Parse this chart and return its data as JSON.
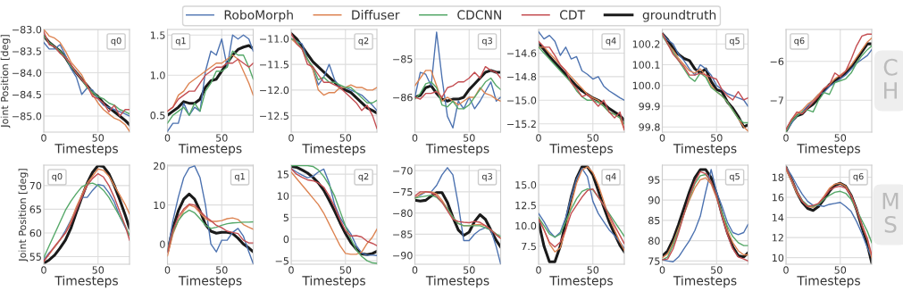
{
  "chart_data": [
    {
      "type": "line",
      "xlabel": "Timesteps",
      "ylabel": "Joint Position [deg]",
      "x": [
        0,
        5,
        10,
        15,
        20,
        25,
        30,
        35,
        40,
        45,
        50,
        55,
        60,
        65,
        70,
        75,
        79
      ],
      "xlim": [
        0,
        79
      ],
      "xticks": [
        0,
        50
      ],
      "ylim": [
        -85.37,
        -83.0
      ],
      "yticks": [
        {
          "value": -85,
          "label": "−85.0"
        },
        -84.5,
        {
          "value": -84,
          "label": "−84.0"
        },
        -83.5,
        {
          "value": -83,
          "label": "−83.0"
        }
      ],
      "grid": true,
      "legend": "top",
      "annotations": [
        "q0"
      ],
      "series": [
        {
          "name": "RoboMorph",
          "color": "#4c72b0",
          "values": [
            -83.3,
            -83.45,
            -83.45,
            -83.35,
            -83.6,
            -83.9,
            -84.1,
            -84.5,
            -84.35,
            -84.4,
            -84.6,
            -84.75,
            -84.8,
            -84.85,
            -84.9,
            -84.95,
            -85.0
          ]
        },
        {
          "name": "Diffuser",
          "color": "#dd8452",
          "values": [
            -83.0,
            -83.15,
            -83.2,
            -83.3,
            -83.5,
            -83.75,
            -83.9,
            -84.05,
            -84.3,
            -84.5,
            -84.7,
            -84.85,
            -84.95,
            -85.05,
            -85.1,
            -85.2,
            -85.35
          ]
        },
        {
          "name": "CDCNN",
          "color": "#55a868",
          "values": [
            -83.15,
            -83.3,
            -83.4,
            -83.5,
            -83.65,
            -83.85,
            -84.0,
            -84.15,
            -84.35,
            -84.45,
            -84.55,
            -84.6,
            -84.7,
            -84.75,
            -84.85,
            -84.9,
            -84.95
          ]
        },
        {
          "name": "CDT",
          "color": "#c44e52",
          "values": [
            -83.05,
            -83.35,
            -83.4,
            -83.55,
            -83.65,
            -83.8,
            -84.0,
            -84.15,
            -84.3,
            -84.55,
            -84.6,
            -84.7,
            -84.9,
            -84.75,
            -85.0,
            -84.85,
            -84.85
          ]
        },
        {
          "name": "groundtruth",
          "color": "#1a1a1a",
          "values": [
            -83.15,
            -83.3,
            -83.4,
            -83.5,
            -83.65,
            -83.85,
            -84.0,
            -84.15,
            -84.3,
            -84.45,
            -84.55,
            -84.7,
            -84.8,
            -84.9,
            -85.0,
            -85.1,
            -85.2
          ]
        }
      ]
    },
    {
      "type": "line",
      "xlabel": "Timesteps",
      "x": [
        0,
        5,
        10,
        15,
        20,
        25,
        30,
        35,
        40,
        45,
        50,
        55,
        60,
        65,
        70,
        75,
        79
      ],
      "xlim": [
        0,
        79
      ],
      "xticks": [
        0,
        50
      ],
      "ylim": [
        0.29,
        1.57
      ],
      "yticks": [
        0.5,
        {
          "value": 1,
          "label": "1.0"
        },
        1.5
      ],
      "grid": true,
      "annotations": [
        "q1"
      ],
      "series": [
        {
          "color": "#4c72b0",
          "values": [
            0.3,
            0.4,
            0.4,
            0.65,
            0.5,
            0.6,
            0.55,
            1.05,
            1.3,
            1.25,
            1.45,
            1.1,
            1.5,
            1.45,
            1.5,
            1.45,
            1.3
          ]
        },
        {
          "color": "#dd8452",
          "values": [
            0.55,
            0.6,
            0.75,
            0.8,
            0.9,
            0.95,
            1.0,
            1.05,
            1.1,
            1.15,
            1.15,
            1.2,
            1.25,
            1.2,
            1.05,
            0.9,
            0.75
          ]
        },
        {
          "color": "#55a868",
          "values": [
            0.4,
            0.5,
            0.55,
            0.6,
            0.5,
            0.65,
            0.55,
            0.8,
            0.9,
            1.05,
            1.05,
            1.1,
            1.3,
            1.25,
            1.25,
            1.1,
            0.95
          ]
        },
        {
          "color": "#c44e52",
          "values": [
            0.55,
            0.6,
            0.7,
            0.75,
            0.8,
            0.8,
            0.9,
            1.0,
            1.05,
            1.1,
            1.1,
            1.15,
            1.15,
            1.2,
            1.15,
            1.1,
            1.15
          ]
        },
        {
          "color": "#1a1a1a",
          "values": [
            0.5,
            0.55,
            0.6,
            0.67,
            0.65,
            0.65,
            0.7,
            0.85,
            0.93,
            0.95,
            1.05,
            1.15,
            1.25,
            1.32,
            1.35,
            1.37,
            1.33
          ]
        }
      ]
    },
    {
      "type": "line",
      "xlabel": "Timesteps",
      "x": [
        0,
        5,
        10,
        15,
        20,
        25,
        30,
        35,
        40,
        45,
        50,
        55,
        60,
        65,
        70,
        75,
        79
      ],
      "xlim": [
        0,
        79
      ],
      "xticks": [
        0,
        50
      ],
      "ylim": [
        -12.82,
        -10.82
      ],
      "yticks": [
        -12.5,
        {
          "value": -12,
          "label": "−12.0"
        },
        -11.5,
        {
          "value": -11,
          "label": "−11.0"
        }
      ],
      "grid": true,
      "annotations": [
        "q2"
      ],
      "series": [
        {
          "color": "#4c72b0",
          "values": [
            -11.0,
            -11.05,
            -11.1,
            -11.4,
            -11.6,
            -11.9,
            -11.75,
            -11.5,
            -11.8,
            -11.95,
            -11.95,
            -12.0,
            -12.05,
            -12.1,
            -12.2,
            -12.3,
            -12.4
          ]
        },
        {
          "color": "#dd8452",
          "values": [
            -11.0,
            -11.1,
            -11.2,
            -11.4,
            -11.6,
            -12.0,
            -12.1,
            -12.05,
            -12.05,
            -11.95,
            -11.95,
            -11.9,
            -11.95,
            -11.95,
            -12.0,
            -12.0,
            -11.95
          ]
        },
        {
          "color": "#55a868",
          "values": [
            -11.0,
            -11.05,
            -11.2,
            -11.4,
            -11.55,
            -11.8,
            -11.75,
            -11.85,
            -11.85,
            -11.9,
            -11.95,
            -11.95,
            -12.05,
            -12.15,
            -12.25,
            -12.25,
            -12.2
          ]
        },
        {
          "color": "#c44e52",
          "values": [
            -10.9,
            -11.1,
            -11.2,
            -11.5,
            -11.55,
            -11.7,
            -11.85,
            -11.85,
            -11.9,
            -11.95,
            -12.05,
            -12.15,
            -12.25,
            -12.4,
            -12.3,
            -12.5,
            -12.75
          ]
        },
        {
          "color": "#1a1a1a",
          "values": [
            -10.9,
            -11.0,
            -11.15,
            -11.3,
            -11.45,
            -11.55,
            -11.65,
            -11.75,
            -11.85,
            -11.95,
            -12.0,
            -12.05,
            -12.15,
            -12.25,
            -12.35,
            -12.4,
            -12.45
          ]
        }
      ]
    },
    {
      "type": "line",
      "xlabel": "Timesteps",
      "x": [
        0,
        5,
        10,
        15,
        20,
        25,
        30,
        35,
        40,
        45,
        50,
        55,
        60,
        65,
        70,
        75,
        79
      ],
      "xlim": [
        0,
        79
      ],
      "xticks": [
        0,
        50
      ],
      "ylim": [
        -86.91,
        -84.23
      ],
      "yticks": [
        -86,
        -85
      ],
      "grid": true,
      "annotations": [
        "q3"
      ],
      "series": [
        {
          "color": "#4c72b0",
          "values": [
            -86.0,
            -85.35,
            -85.4,
            -85.7,
            -84.3,
            -85.5,
            -86.5,
            -86.8,
            -86.1,
            -86.3,
            -86.0,
            -86.3,
            -86.1,
            -85.85,
            -85.6,
            -86.1,
            -86.0
          ]
        },
        {
          "color": "#dd8452",
          "values": [
            -85.7,
            -85.5,
            -85.3,
            -85.3,
            -85.7,
            -86.1,
            -86.0,
            -86.1,
            -86.2,
            -86.1,
            -86.0,
            -86.0,
            -85.75,
            -85.9,
            -85.95,
            -86.05,
            -86.1
          ]
        },
        {
          "color": "#55a868",
          "values": [
            -86.05,
            -85.9,
            -85.65,
            -85.6,
            -85.75,
            -86.2,
            -86.25,
            -86.1,
            -86.3,
            -86.3,
            -86.2,
            -86.0,
            -85.8,
            -85.6,
            -85.5,
            -85.7,
            -85.8
          ]
        },
        {
          "color": "#c44e52",
          "values": [
            -86.0,
            -86.05,
            -85.9,
            -85.9,
            -85.85,
            -86.0,
            -85.75,
            -85.7,
            -85.6,
            -85.6,
            -85.5,
            -85.35,
            -85.5,
            -85.2,
            -85.3,
            -85.35,
            -85.5
          ]
        },
        {
          "color": "#1a1a1a",
          "values": [
            -86.0,
            -85.95,
            -85.75,
            -85.7,
            -85.9,
            -86.05,
            -86.1,
            -86.05,
            -86.05,
            -86.0,
            -85.8,
            -85.65,
            -85.5,
            -85.35,
            -85.3,
            -85.35,
            -85.35
          ]
        }
      ]
    },
    {
      "type": "line",
      "xlabel": "Timesteps",
      "x": [
        0,
        5,
        10,
        15,
        20,
        25,
        30,
        35,
        40,
        45,
        50,
        55,
        60,
        65,
        70,
        75,
        79
      ],
      "xlim": [
        0,
        79
      ],
      "xticks": [
        0,
        50
      ],
      "ylim": [
        -15.27,
        -14.4
      ],
      "yticks": [
        -15.2,
        {
          "value": -15,
          "label": "−15.0"
        },
        -14.8,
        -14.6
      ],
      "grid": true,
      "annotations": [
        "q4"
      ],
      "series": [
        {
          "color": "#4c72b0",
          "values": [
            -14.42,
            -14.48,
            -14.45,
            -14.5,
            -14.62,
            -14.55,
            -14.65,
            -14.63,
            -14.75,
            -14.78,
            -14.82,
            -14.8,
            -14.88,
            -14.92,
            -14.95,
            -14.98,
            -15.0
          ]
        },
        {
          "color": "#dd8452",
          "values": [
            -14.55,
            -14.55,
            -14.6,
            -14.65,
            -14.7,
            -14.75,
            -14.8,
            -14.85,
            -14.9,
            -14.95,
            -14.98,
            -15.0,
            -15.05,
            -15.1,
            -15.12,
            -15.15,
            -15.25
          ]
        },
        {
          "color": "#55a868",
          "values": [
            -14.55,
            -14.6,
            -14.65,
            -14.7,
            -14.75,
            -14.8,
            -14.85,
            -14.92,
            -14.97,
            -15.0,
            -15.0,
            -15.02,
            -15.05,
            -15.1,
            -15.12,
            -15.15,
            -15.2
          ]
        },
        {
          "color": "#c44e52",
          "values": [
            -14.5,
            -14.55,
            -14.55,
            -14.62,
            -14.7,
            -14.75,
            -14.85,
            -14.9,
            -14.97,
            -14.95,
            -15.0,
            -15.05,
            -15.0,
            -15.1,
            -15.15,
            -15.1,
            -15.25
          ]
        },
        {
          "color": "#1a1a1a",
          "values": [
            -14.52,
            -14.57,
            -14.63,
            -14.68,
            -14.73,
            -14.78,
            -14.83,
            -14.88,
            -14.92,
            -14.95,
            -14.98,
            -15.0,
            -15.03,
            -15.07,
            -15.1,
            -15.13,
            -15.17
          ]
        }
      ]
    },
    {
      "type": "line",
      "xlabel": "Timesteps",
      "x": [
        0,
        5,
        10,
        15,
        20,
        25,
        30,
        35,
        40,
        45,
        50,
        55,
        60,
        65,
        70,
        75,
        79
      ],
      "xlim": [
        0,
        79
      ],
      "xticks": [
        0,
        50
      ],
      "ylim": [
        99.775,
        100.27
      ],
      "yticks": [
        99.8,
        99.9,
        {
          "value": 100,
          "label": "100.0"
        },
        100.1,
        100.2
      ],
      "grid": true,
      "annotations": [
        "q5"
      ],
      "series": [
        {
          "color": "#4c72b0",
          "values": [
            100.25,
            100.22,
            100.2,
            100.15,
            100.12,
            100.08,
            100.05,
            100.1,
            100.08,
            100.05,
            100.0,
            99.98,
            99.96,
            99.95,
            99.94,
            99.93,
            99.9
          ]
        },
        {
          "color": "#dd8452",
          "values": [
            100.25,
            100.2,
            100.17,
            100.13,
            100.1,
            100.07,
            100.06,
            100.08,
            100.05,
            100.0,
            99.97,
            99.95,
            99.92,
            99.88,
            99.84,
            99.8,
            99.78
          ]
        },
        {
          "color": "#55a868",
          "values": [
            100.24,
            100.2,
            100.16,
            100.12,
            100.08,
            100.04,
            100.02,
            100.06,
            100.04,
            99.99,
            99.97,
            99.95,
            99.92,
            99.88,
            99.84,
            99.82,
            99.82
          ]
        },
        {
          "color": "#c44e52",
          "values": [
            100.25,
            100.2,
            100.15,
            100.12,
            100.09,
            100.05,
            100.05,
            100.06,
            100.05,
            100.04,
            100.03,
            99.98,
            99.95,
            99.93,
            99.97,
            99.93,
            99.94
          ]
        },
        {
          "color": "#1a1a1a",
          "values": [
            100.25,
            100.22,
            100.18,
            100.15,
            100.13,
            100.12,
            100.08,
            100.06,
            100.08,
            100.02,
            99.98,
            99.97,
            99.92,
            99.89,
            99.85,
            99.8,
            99.81
          ]
        }
      ]
    },
    {
      "type": "line",
      "xlabel": "Timesteps",
      "x": [
        0,
        5,
        10,
        15,
        20,
        25,
        30,
        35,
        40,
        45,
        50,
        55,
        60,
        65,
        70,
        75,
        79
      ],
      "xlim": [
        0,
        79
      ],
      "xticks": [
        0,
        50
      ],
      "ylim": [
        -7.82,
        -5.18
      ],
      "yticks": [
        -7,
        -6
      ],
      "grid": true,
      "annotations": [
        "q6",
        "CH"
      ],
      "series": [
        {
          "color": "#4c72b0",
          "values": [
            -7.8,
            -7.6,
            -7.4,
            -7.3,
            -7.15,
            -7.0,
            -6.85,
            -6.8,
            -6.65,
            -6.55,
            -6.45,
            -6.35,
            -6.2,
            -6.05,
            -5.95,
            -5.85,
            -5.7
          ]
        },
        {
          "color": "#dd8452",
          "values": [
            -7.8,
            -7.5,
            -7.35,
            -7.25,
            -7.1,
            -7.0,
            -6.85,
            -6.7,
            -6.6,
            -6.45,
            -6.35,
            -6.25,
            -6.1,
            -5.9,
            -5.7,
            -5.5,
            -5.4
          ]
        },
        {
          "color": "#55a868",
          "values": [
            -7.8,
            -7.55,
            -7.4,
            -7.3,
            -7.25,
            -7.3,
            -7.0,
            -6.8,
            -6.85,
            -6.55,
            -6.5,
            -6.45,
            -6.3,
            -6.05,
            -5.85,
            -5.7,
            -5.6
          ]
        },
        {
          "color": "#c44e52",
          "values": [
            -7.75,
            -7.5,
            -7.3,
            -7.35,
            -7.2,
            -7.05,
            -6.9,
            -6.7,
            -6.6,
            -6.3,
            -6.4,
            -6.25,
            -5.95,
            -5.6,
            -5.35,
            -5.3,
            -5.3
          ]
        },
        {
          "color": "#1a1a1a",
          "values": [
            -7.8,
            -7.55,
            -7.4,
            -7.35,
            -7.2,
            -7.1,
            -6.95,
            -6.75,
            -6.6,
            -6.5,
            -6.4,
            -6.3,
            -6.15,
            -5.95,
            -5.75,
            -5.55,
            -5.55
          ]
        }
      ]
    },
    {
      "type": "line",
      "xlabel": "Timesteps",
      "ylabel": "Joint Position [deg]",
      "x": [
        0,
        5,
        10,
        15,
        20,
        25,
        30,
        35,
        40,
        45,
        50,
        55,
        60,
        65,
        70,
        75,
        79
      ],
      "xlim": [
        0,
        79
      ],
      "xticks": [
        0,
        50
      ],
      "ylim": [
        53.4,
        74.3
      ],
      "yticks": [
        55,
        60,
        65,
        70
      ],
      "grid": true,
      "annotations": [
        "q0"
      ],
      "series": [
        {
          "color": "#4c72b0",
          "values": [
            54.3,
            55.8,
            57,
            58.5,
            60.5,
            62.7,
            65,
            67.5,
            67.5,
            69,
            70.2,
            70,
            68.5,
            66.5,
            63.5,
            61.2,
            59.5
          ]
        },
        {
          "color": "#dd8452",
          "values": [
            54,
            55.5,
            57,
            58.5,
            60,
            62.5,
            65.5,
            68,
            70.5,
            72,
            73.5,
            73.2,
            72,
            70,
            68,
            66,
            64
          ]
        },
        {
          "color": "#55a868",
          "values": [
            54.8,
            57.3,
            59.8,
            62.3,
            64.8,
            66.7,
            68.3,
            69.7,
            70.3,
            70.5,
            70,
            69,
            67.5,
            65.5,
            63.5,
            61.5,
            59.5
          ]
        },
        {
          "color": "#c44e52",
          "values": [
            54,
            55.6,
            57.2,
            58.6,
            60,
            62,
            64.8,
            67.5,
            70,
            71.5,
            72.5,
            71.8,
            70,
            67.5,
            64.5,
            61.5,
            58.5
          ]
        },
        {
          "color": "#1a1a1a",
          "values": [
            53.6,
            54.3,
            55.3,
            56.8,
            58.5,
            61,
            64.3,
            67.5,
            70.5,
            72.8,
            74.2,
            74,
            72.5,
            70,
            67,
            63.8,
            61
          ]
        }
      ]
    },
    {
      "type": "line",
      "xlabel": "Timesteps",
      "x": [
        0,
        5,
        10,
        15,
        20,
        25,
        30,
        35,
        40,
        45,
        50,
        55,
        60,
        65,
        70,
        75,
        79
      ],
      "xlim": [
        0,
        79
      ],
      "xticks": [
        0,
        50
      ],
      "ylim": [
        -5.15,
        20.2
      ],
      "yticks": [
        0,
        10,
        20
      ],
      "grid": true,
      "annotations": [
        "q1"
      ],
      "series": [
        {
          "color": "#4c72b0",
          "values": [
            -2,
            6,
            12,
            17,
            19.5,
            20,
            17,
            10,
            0,
            -2,
            1,
            1,
            3,
            4,
            2,
            -2,
            -5
          ]
        },
        {
          "color": "#dd8452",
          "values": [
            -3,
            2.5,
            6,
            8.5,
            10,
            9.5,
            8,
            6.5,
            5.8,
            5.8,
            6,
            6.5,
            6.7,
            6.3,
            5,
            4.3,
            3.8
          ]
        },
        {
          "color": "#55a868",
          "values": [
            -1.5,
            3,
            6,
            7.8,
            8.7,
            8,
            6.5,
            4.8,
            4,
            4.3,
            4.8,
            5.2,
            5.4,
            5.5,
            5.6,
            5.6,
            5.7
          ]
        },
        {
          "color": "#c44e52",
          "values": [
            -2,
            3.5,
            7,
            9,
            10.2,
            10,
            8.5,
            7,
            6,
            4.8,
            4.2,
            3.3,
            3,
            2.7,
            1,
            0.3,
            0.3
          ]
        },
        {
          "color": "#1a1a1a",
          "values": [
            -2,
            4,
            8.5,
            11.5,
            12.8,
            11.5,
            8.5,
            5,
            3.3,
            2.8,
            3,
            3,
            2.7,
            1.5,
            0,
            -1,
            -2
          ]
        }
      ]
    },
    {
      "type": "line",
      "xlabel": "Timesteps",
      "x": [
        0,
        5,
        10,
        15,
        20,
        25,
        30,
        35,
        40,
        45,
        50,
        55,
        60,
        65,
        70,
        75,
        79
      ],
      "xlim": [
        0,
        79
      ],
      "xticks": [
        0,
        50
      ],
      "ylim": [
        -5.8,
        17.1
      ],
      "yticks": [
        -5,
        0,
        5,
        10,
        15
      ],
      "grid": true,
      "annotations": [
        "q2"
      ],
      "series": [
        {
          "color": "#4c72b0",
          "values": [
            16.3,
            15.5,
            14.8,
            14.2,
            14.5,
            15.5,
            16.2,
            13,
            8,
            5,
            3,
            1.2,
            -1.5,
            -3.2,
            -3.7,
            -3.7,
            -3.8
          ]
        },
        {
          "color": "#dd8452",
          "values": [
            15.5,
            14,
            12.5,
            11,
            9.5,
            8,
            6,
            3.5,
            1,
            -1.5,
            -3.3,
            -3.5,
            -3.5,
            -3,
            -1,
            0.5,
            2.3
          ]
        },
        {
          "color": "#55a868",
          "values": [
            17,
            17,
            17,
            17,
            16.8,
            16,
            14.5,
            12.5,
            10,
            6.5,
            3,
            0,
            -2.5,
            -4,
            -5,
            -5.5,
            -5.6
          ]
        },
        {
          "color": "#c44e52",
          "values": [
            16.3,
            15,
            14.3,
            13.7,
            13.5,
            13,
            12,
            10,
            7.5,
            4.5,
            2,
            0.7,
            0.8,
            0.5,
            -0.5,
            -1,
            -1.5
          ]
        },
        {
          "color": "#1a1a1a",
          "values": [
            16.8,
            16.6,
            16,
            15.3,
            14.3,
            13,
            11.3,
            9,
            6.5,
            3.8,
            1.3,
            -0.8,
            -2.3,
            -3.4,
            -3.6,
            -3.3,
            -2.8
          ]
        }
      ]
    },
    {
      "type": "line",
      "xlabel": "Timesteps",
      "x": [
        0,
        5,
        10,
        15,
        20,
        25,
        30,
        35,
        40,
        45,
        50,
        55,
        60,
        65,
        70,
        75,
        79
      ],
      "xlim": [
        0,
        79
      ],
      "xticks": [
        0,
        50
      ],
      "ylim": [
        -92.1,
        -68.7
      ],
      "yticks": [
        -90,
        -85,
        -80,
        -75,
        -70
      ],
      "grid": true,
      "annotations": [
        "q3"
      ],
      "series": [
        {
          "color": "#4c72b0",
          "values": [
            -76.3,
            -75.8,
            -75,
            -75,
            -73.5,
            -71,
            -69.3,
            -71,
            -78,
            -86.5,
            -86.5,
            -85,
            -84,
            -83.5,
            -84,
            -88,
            -92
          ]
        },
        {
          "color": "#dd8452",
          "values": [
            -76.5,
            -75.5,
            -75,
            -75,
            -75.5,
            -77,
            -79,
            -81,
            -82.5,
            -83,
            -83,
            -82.8,
            -82.7,
            -83,
            -84,
            -85,
            -86
          ]
        },
        {
          "color": "#55a868",
          "values": [
            -76.5,
            -76.2,
            -76,
            -75.8,
            -76.3,
            -77.5,
            -79,
            -81,
            -82.5,
            -83,
            -83,
            -83,
            -83,
            -83.5,
            -84,
            -85,
            -85.5
          ]
        },
        {
          "color": "#c44e52",
          "values": [
            -76,
            -75,
            -75,
            -75.2,
            -76,
            -77.5,
            -79.5,
            -81.5,
            -82,
            -82.2,
            -82.3,
            -82,
            -82.2,
            -83,
            -84,
            -85.2,
            -86
          ]
        },
        {
          "color": "#1a1a1a",
          "values": [
            -77,
            -77.2,
            -77,
            -76,
            -75.2,
            -75.2,
            -77.5,
            -81,
            -84,
            -85.3,
            -84.5,
            -82,
            -80.4,
            -81.5,
            -84,
            -86.5,
            -88
          ]
        }
      ]
    },
    {
      "type": "line",
      "xlabel": "Timesteps",
      "x": [
        0,
        5,
        10,
        15,
        20,
        25,
        30,
        35,
        40,
        45,
        50,
        55,
        60,
        65,
        70,
        75,
        79
      ],
      "xlim": [
        0,
        79
      ],
      "xticks": [
        0,
        50
      ],
      "ylim": [
        5.3,
        17.4
      ],
      "yticks": [
        7.5,
        {
          "value": 10,
          "label": "10.0"
        },
        12.5,
        {
          "value": 15,
          "label": "15.0"
        }
      ],
      "grid": true,
      "annotations": [
        "q4"
      ],
      "series": [
        {
          "color": "#4c72b0",
          "values": [
            11.5,
            10.5,
            9.3,
            8.6,
            9.2,
            11,
            13.5,
            15.7,
            17,
            16,
            13,
            11.5,
            10.5,
            9.5,
            8.8,
            8,
            7.2
          ]
        },
        {
          "color": "#dd8452",
          "values": [
            11,
            9.5,
            7.8,
            6.8,
            7.3,
            9.5,
            12.5,
            15.2,
            16.8,
            17.2,
            16.5,
            15,
            13,
            11,
            9.5,
            8,
            7
          ]
        },
        {
          "color": "#55a868",
          "values": [
            11,
            10,
            9,
            8.6,
            9,
            10.5,
            12,
            13.3,
            14.2,
            14.5,
            14.4,
            13.5,
            12.5,
            11.5,
            10.5,
            9.5,
            8.7
          ]
        },
        {
          "color": "#c44e52",
          "values": [
            10.8,
            9.5,
            8,
            7.4,
            8,
            9.5,
            11.5,
            12.5,
            13.5,
            14.3,
            14.5,
            13.5,
            12.5,
            11.3,
            10,
            8.8,
            7.8
          ]
        },
        {
          "color": "#1a1a1a",
          "values": [
            10.5,
            7.5,
            5.6,
            5.6,
            7.5,
            10.5,
            13.5,
            15.8,
            17.2,
            17.2,
            16.2,
            14.3,
            12.3,
            10.5,
            9,
            7.6,
            6.8
          ]
        }
      ]
    },
    {
      "type": "line",
      "xlabel": "Timesteps",
      "x": [
        0,
        5,
        10,
        15,
        20,
        25,
        30,
        35,
        40,
        45,
        50,
        55,
        60,
        65,
        70,
        75,
        79
      ],
      "xlim": [
        0,
        79
      ],
      "xticks": [
        0,
        50
      ],
      "ylim": [
        74.2,
        98.6
      ],
      "yticks": [
        75,
        80,
        85,
        90,
        95
      ],
      "grid": true,
      "annotations": [
        "q5"
      ],
      "series": [
        {
          "color": "#4c72b0",
          "values": [
            75.3,
            75,
            74.8,
            76,
            78,
            80,
            82.5,
            86,
            92,
            97.5,
            92,
            88.5,
            84.5,
            82,
            81.5,
            82,
            84
          ]
        },
        {
          "color": "#dd8452",
          "values": [
            75.8,
            76.8,
            79.5,
            83,
            86.5,
            90,
            93,
            95,
            95.5,
            94,
            90.5,
            86.5,
            82.5,
            79.5,
            77.5,
            76.5,
            76.5
          ]
        },
        {
          "color": "#55a868",
          "values": [
            75.3,
            76,
            79,
            82.5,
            86.5,
            90.5,
            94,
            96,
            96.3,
            94.5,
            91,
            87,
            83.5,
            81,
            79.5,
            78.8,
            78.8
          ]
        },
        {
          "color": "#c44e52",
          "values": [
            75.3,
            75.5,
            78,
            82,
            86.5,
            91,
            94.5,
            97,
            96.5,
            94.5,
            91,
            86,
            81.5,
            78,
            76,
            75.5,
            75
          ]
        },
        {
          "color": "#1a1a1a",
          "values": [
            76.2,
            77.5,
            80.3,
            84,
            88,
            92,
            95.5,
            97.5,
            97.5,
            95.5,
            91.5,
            86.5,
            82,
            78.5,
            76.3,
            76,
            77
          ]
        }
      ]
    },
    {
      "type": "line",
      "xlabel": "Timesteps",
      "x": [
        0,
        5,
        10,
        15,
        20,
        25,
        30,
        35,
        40,
        45,
        50,
        55,
        60,
        65,
        70,
        75,
        79
      ],
      "xlim": [
        0,
        79
      ],
      "xticks": [
        0,
        50
      ],
      "ylim": [
        9.35,
        19.2
      ],
      "yticks": [
        10,
        12,
        14,
        16,
        18
      ],
      "grid": true,
      "annotations": [
        "q6",
        "MS"
      ],
      "series": [
        {
          "color": "#4c72b0",
          "values": [
            19,
            18.2,
            17.2,
            16.3,
            15.6,
            15.2,
            15.2,
            15.1,
            15.3,
            15.4,
            15.5,
            15.1,
            14.6,
            13.6,
            12.4,
            11,
            10
          ]
        },
        {
          "color": "#dd8452",
          "values": [
            18.8,
            17.6,
            16.4,
            15.6,
            15.1,
            15,
            15.4,
            16.1,
            16.9,
            17.3,
            17.4,
            17.1,
            16.2,
            14.8,
            13.2,
            11.8,
            10
          ]
        },
        {
          "color": "#55a868",
          "values": [
            19,
            17.8,
            16.6,
            15.7,
            15.2,
            15.1,
            15.3,
            15.8,
            16.2,
            16.5,
            16.6,
            16.4,
            15.8,
            14.8,
            13.7,
            12.6,
            11.5
          ]
        },
        {
          "color": "#c44e52",
          "values": [
            19,
            17.8,
            16.6,
            15.6,
            15.1,
            15.2,
            15.4,
            16,
            16.7,
            17,
            17.1,
            16.9,
            16.2,
            14.8,
            13.3,
            11.9,
            10.3
          ]
        },
        {
          "color": "#1a1a1a",
          "values": [
            19,
            17.8,
            16.5,
            15.5,
            14.9,
            14.7,
            15.1,
            15.8,
            16.6,
            17.2,
            17.4,
            17.1,
            16.2,
            14.8,
            13,
            11.3,
            9.5
          ]
        }
      ]
    }
  ]
}
